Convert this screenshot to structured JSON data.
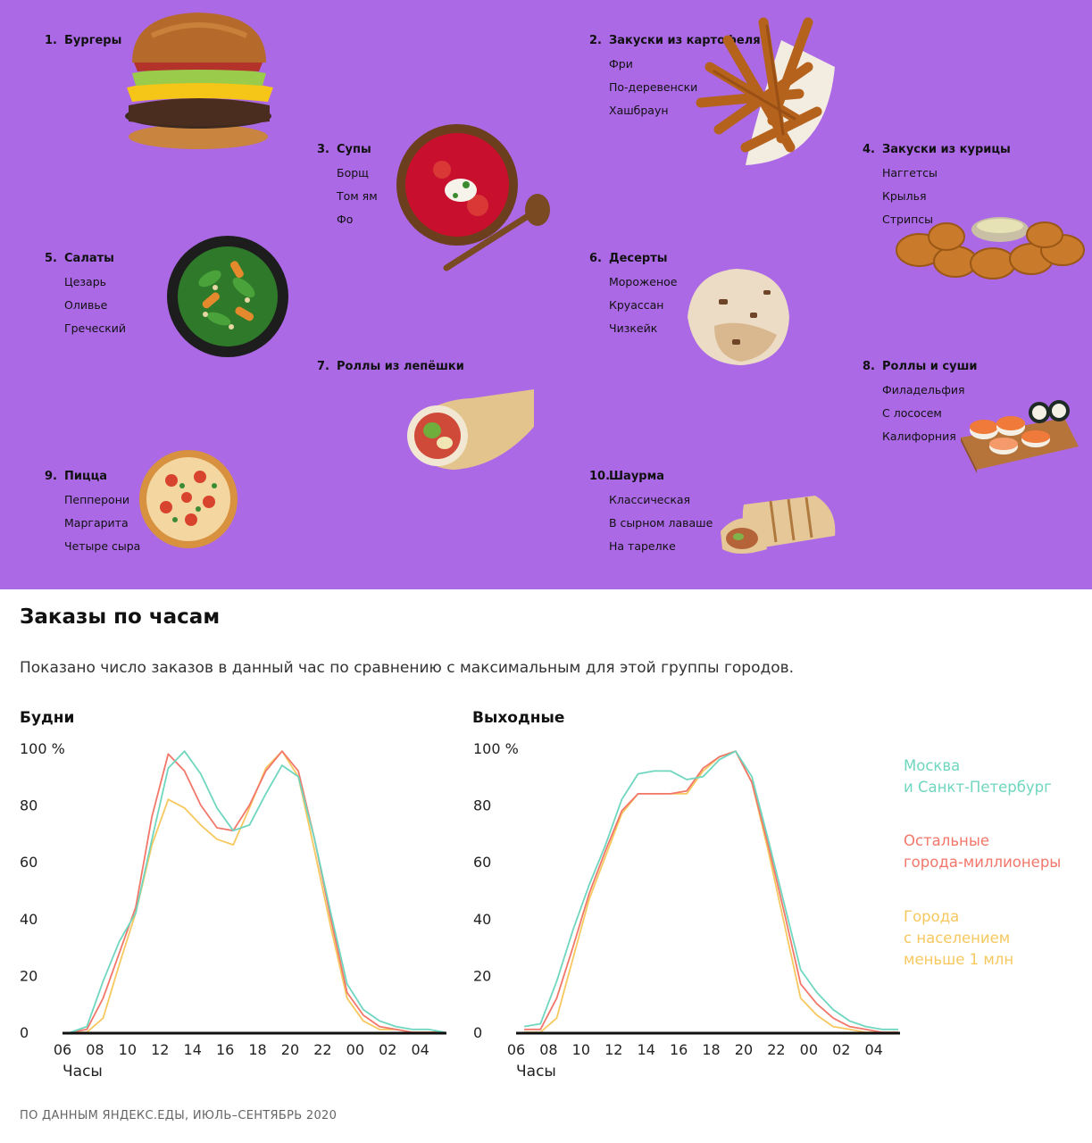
{
  "food_categories": [
    {
      "num": "1.",
      "title": "Бургеры",
      "items": [],
      "icon": "burger-image"
    },
    {
      "num": "2.",
      "title": "Закуски из картофеля",
      "items": [
        "Фри",
        "По-деревенски",
        "Хашбраун"
      ],
      "icon": "fries-image"
    },
    {
      "num": "3.",
      "title": "Супы",
      "items": [
        "Борщ",
        "Том ям",
        "Фо"
      ],
      "icon": "soup-image"
    },
    {
      "num": "4.",
      "title": "Закуски из курицы",
      "items": [
        "Наггетсы",
        "Крылья",
        "Стрипсы"
      ],
      "icon": "nuggets-image"
    },
    {
      "num": "5.",
      "title": "Салаты",
      "items": [
        "Цезарь",
        "Оливье",
        "Греческий"
      ],
      "icon": "salad-image"
    },
    {
      "num": "6.",
      "title": "Десерты",
      "items": [
        "Мороженое",
        "Круассан",
        "Чизкейк"
      ],
      "icon": "icecream-image"
    },
    {
      "num": "7.",
      "title": "Роллы из лепёшки",
      "items": [],
      "icon": "wrap-image"
    },
    {
      "num": "8.",
      "title": "Роллы и суши",
      "items": [
        "Филадельфия",
        "С лососем",
        "Калифорния"
      ],
      "icon": "sushi-image"
    },
    {
      "num": "9.",
      "title": "Пицца",
      "items": [
        "Пепперони",
        "Маргарита",
        "Четыре сыра"
      ],
      "icon": "pizza-image"
    },
    {
      "num": "10.",
      "title": "Шаурма",
      "items": [
        "Классическая",
        "В сырном лаваше",
        "На тарелке"
      ],
      "icon": "shawarma-image"
    }
  ],
  "header": {
    "title": "Заказы по часам",
    "subtitle": "Показано число заказов в данный час по сравнению с максимальным для этой группы городов."
  },
  "colors": {
    "panel_background": "#ab69e6",
    "moscow_spb": "#6fd6bf",
    "millionaires": "#f2776a",
    "small_cities": "#f6c85f"
  },
  "legend": [
    {
      "label": "Москва\nи Санкт-Петербург",
      "color": "#6fd6bf"
    },
    {
      "label": "Остальные\nгорода-миллионеры",
      "color": "#f2776a"
    },
    {
      "label": "Города\nс населением\nменьше 1 млн",
      "color": "#f6c85f"
    }
  ],
  "chart_data": [
    {
      "type": "line",
      "title": "Будни",
      "xlabel": "Часы",
      "ylabel": "",
      "xlim": [
        6,
        29.5
      ],
      "ylim": [
        0,
        100
      ],
      "x_ticks": [
        "06",
        "08",
        "10",
        "12",
        "14",
        "16",
        "18",
        "20",
        "22",
        "00",
        "02",
        "04"
      ],
      "y_ticks": [
        "0",
        "20",
        "40",
        "60",
        "80",
        "100 %"
      ],
      "x": [
        6.5,
        7.5,
        8.5,
        9.5,
        10.5,
        11.5,
        12.5,
        13.5,
        14.5,
        15.5,
        16.5,
        17.5,
        18.5,
        19.5,
        20.5,
        21.5,
        22.5,
        23.5,
        24.5,
        25.5,
        26.5,
        27.5,
        28.5,
        29.5
      ],
      "series": [
        {
          "name": "Москва\nи Санкт-Петербург",
          "color": "#6fd6bf",
          "values": [
            0,
            2,
            18,
            32,
            42,
            68,
            93,
            99,
            91,
            79,
            71,
            73,
            84,
            94,
            90,
            68,
            42,
            17,
            8,
            4,
            2,
            1,
            1,
            0
          ]
        },
        {
          "name": "Остальные\nгорода-миллионеры",
          "color": "#f2776a",
          "values": [
            0,
            1,
            12,
            28,
            44,
            76,
            98,
            92,
            80,
            72,
            71,
            80,
            92,
            99,
            92,
            68,
            40,
            14,
            6,
            2,
            1,
            0,
            0,
            0
          ]
        },
        {
          "name": "Города\nс населением\nменьше 1 млн",
          "color": "#f6c85f",
          "values": [
            0,
            0,
            5,
            24,
            42,
            66,
            82,
            79,
            73,
            68,
            66,
            79,
            93,
            99,
            90,
            64,
            37,
            12,
            4,
            1,
            1,
            0,
            0,
            0
          ]
        }
      ]
    },
    {
      "type": "line",
      "title": "Выходные",
      "xlabel": "Часы",
      "ylabel": "",
      "xlim": [
        6,
        29.5
      ],
      "ylim": [
        0,
        100
      ],
      "x_ticks": [
        "06",
        "08",
        "10",
        "12",
        "14",
        "16",
        "18",
        "20",
        "22",
        "00",
        "02",
        "04"
      ],
      "y_ticks": [
        "0",
        "20",
        "40",
        "60",
        "80",
        "100 %"
      ],
      "x": [
        6.5,
        7.5,
        8.5,
        9.5,
        10.5,
        11.5,
        12.5,
        13.5,
        14.5,
        15.5,
        16.5,
        17.5,
        18.5,
        19.5,
        20.5,
        21.5,
        22.5,
        23.5,
        24.5,
        25.5,
        26.5,
        27.5,
        28.5,
        29.5
      ],
      "series": [
        {
          "name": "Москва\nи Санкт-Петербург",
          "color": "#6fd6bf",
          "values": [
            2,
            3,
            18,
            36,
            52,
            66,
            82,
            91,
            92,
            92,
            89,
            90,
            96,
            99,
            90,
            68,
            45,
            22,
            14,
            8,
            4,
            2,
            1,
            1
          ]
        },
        {
          "name": "Остальные\nгорода-миллионеры",
          "color": "#f2776a",
          "values": [
            1,
            1,
            12,
            30,
            49,
            64,
            78,
            84,
            84,
            84,
            85,
            93,
            97,
            99,
            88,
            66,
            42,
            17,
            10,
            5,
            2,
            1,
            0,
            0
          ]
        },
        {
          "name": "Города\nс населением\nменьше 1 млн",
          "color": "#f6c85f",
          "values": [
            0,
            0,
            5,
            26,
            47,
            62,
            77,
            84,
            84,
            84,
            84,
            92,
            97,
            99,
            88,
            64,
            38,
            12,
            6,
            2,
            1,
            0,
            0,
            0
          ]
        }
      ]
    }
  ],
  "source": "ПО ДАННЫМ ЯНДЕКС.ЕДЫ, ИЮЛЬ–СЕНТЯБРЬ 2020"
}
